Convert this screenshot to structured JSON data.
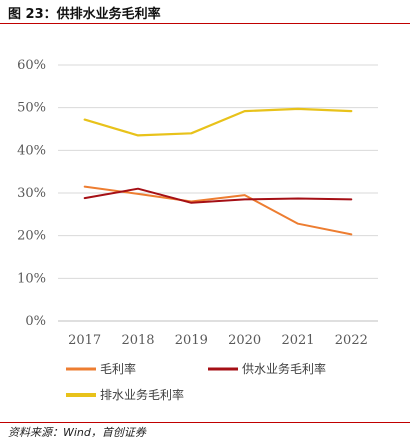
{
  "figure_title": "图 23：供排水业务毛利率",
  "source": "资料来源：Wind，首创证券",
  "chart_data": {
    "type": "line",
    "title": "",
    "xlabel": "",
    "ylabel": "",
    "categories": [
      "2017",
      "2018",
      "2019",
      "2020",
      "2021",
      "2022"
    ],
    "ylim": [
      0,
      60
    ],
    "yticks": [
      "0%",
      "10%",
      "20%",
      "30%",
      "40%",
      "50%",
      "60%"
    ],
    "grid": "horizontal",
    "legend_position": "bottom",
    "series": [
      {
        "name": "毛利率",
        "color": "#ed7d31",
        "values": [
          31.5,
          29.8,
          28.0,
          29.5,
          22.8,
          20.3
        ]
      },
      {
        "name": "供水业务毛利率",
        "color": "#a50f15",
        "values": [
          28.8,
          31.0,
          27.7,
          28.5,
          28.7,
          28.5
        ]
      },
      {
        "name": "排水业务毛利率",
        "color": "#e8c21a",
        "values": [
          47.2,
          43.5,
          44.0,
          49.2,
          49.7,
          49.2
        ]
      }
    ]
  }
}
